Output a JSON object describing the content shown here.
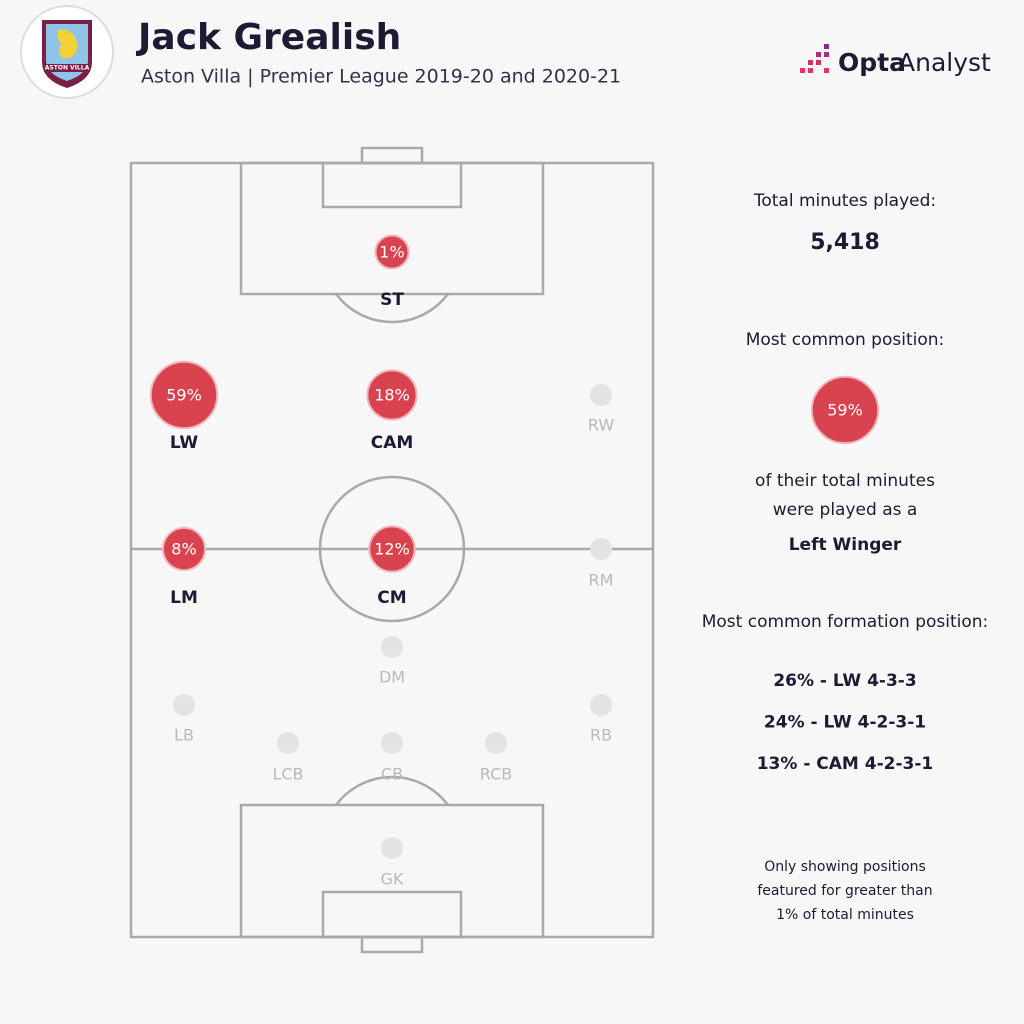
{
  "header": {
    "title": "Jack Grealish",
    "subtitle": "Aston Villa | Premier League 2019-20 and 2020-21",
    "crest_text": "ASTON VILLA",
    "brand": [
      "Opta",
      "Analyst"
    ]
  },
  "positions": [
    {
      "label": "ST",
      "value": 1,
      "value_label": "1%"
    },
    {
      "label": "LW",
      "value": 59,
      "value_label": "59%"
    },
    {
      "label": "CAM",
      "value": 18,
      "value_label": "18%"
    },
    {
      "label": "RW"
    },
    {
      "label": "LM",
      "value": 8,
      "value_label": "8%"
    },
    {
      "label": "CM",
      "value": 12,
      "value_label": "12%"
    },
    {
      "label": "RM"
    },
    {
      "label": "DM"
    },
    {
      "label": "LB"
    },
    {
      "label": "RB"
    },
    {
      "label": "LCB"
    },
    {
      "label": "CB"
    },
    {
      "label": "RCB"
    },
    {
      "label": "GK"
    }
  ],
  "summary": {
    "minutes_heading": "Total minutes played:",
    "minutes": "5,418",
    "position_heading": "Most common position:",
    "position_value": 59,
    "position_value_label": "59%",
    "position_text": [
      "of their total minutes",
      "were played as a"
    ],
    "position_name": "Left Winger",
    "formation_heading": "Most common formation position:",
    "formations": [
      "26% - LW 4-3-3",
      "24% - LW 4-2-3-1",
      "13% - CAM 4-2-3-1"
    ],
    "note": [
      "Only showing positions",
      "featured for greater than",
      "1% of total minutes"
    ]
  }
}
